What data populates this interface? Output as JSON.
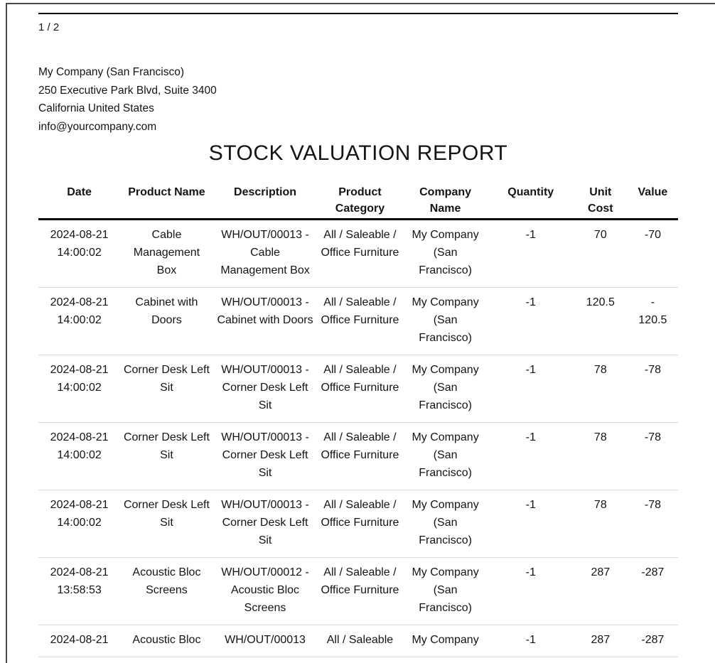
{
  "viewer": {
    "page_indicator": "1 / 2"
  },
  "company": {
    "name": "My Company (San Francisco)",
    "address_line1": "250 Executive Park Blvd, Suite 3400",
    "address_line2": "California United States",
    "email": "info@yourcompany.com"
  },
  "report": {
    "title": "STOCK VALUATION REPORT"
  },
  "table": {
    "headers": [
      "Date",
      "Product Name",
      "Description",
      "Product Category",
      "Company Name",
      "Quantity",
      "Unit Cost",
      "Value"
    ],
    "row_keys": [
      "date",
      "product_name",
      "description",
      "product_category",
      "company_name",
      "quantity",
      "unit_cost",
      "value"
    ],
    "rows": [
      {
        "date": "2024-08-21 14:00:02",
        "product_name": "Cable Management Box",
        "description": "WH/OUT/00013 - Cable Management Box",
        "product_category": "All / Saleable / Office Furniture",
        "company_name": "My Company (San Francisco)",
        "quantity": "-1",
        "unit_cost": "70",
        "value": "-70"
      },
      {
        "date": "2024-08-21 14:00:02",
        "product_name": "Cabinet with Doors",
        "description": "WH/OUT/00013 - Cabinet with Doors",
        "product_category": "All / Saleable / Office Furniture",
        "company_name": "My Company (San Francisco)",
        "quantity": "-1",
        "unit_cost": "120.5",
        "value": "-\n120.5"
      },
      {
        "date": "2024-08-21 14:00:02",
        "product_name": "Corner Desk Left Sit",
        "description": "WH/OUT/00013 - Corner Desk Left Sit",
        "product_category": "All / Saleable / Office Furniture",
        "company_name": "My Company (San Francisco)",
        "quantity": "-1",
        "unit_cost": "78",
        "value": "-78"
      },
      {
        "date": "2024-08-21 14:00:02",
        "product_name": "Corner Desk Left Sit",
        "description": "WH/OUT/00013 - Corner Desk Left Sit",
        "product_category": "All / Saleable / Office Furniture",
        "company_name": "My Company (San Francisco)",
        "quantity": "-1",
        "unit_cost": "78",
        "value": "-78"
      },
      {
        "date": "2024-08-21 14:00:02",
        "product_name": "Corner Desk Left Sit",
        "description": "WH/OUT/00013 - Corner Desk Left Sit",
        "product_category": "All / Saleable / Office Furniture",
        "company_name": "My Company (San Francisco)",
        "quantity": "-1",
        "unit_cost": "78",
        "value": "-78"
      },
      {
        "date": "2024-08-21 13:58:53",
        "product_name": "Acoustic Bloc Screens",
        "description": "WH/OUT/00012 - Acoustic Bloc Screens",
        "product_category": "All / Saleable / Office Furniture",
        "company_name": "My Company (San Francisco)",
        "quantity": "-1",
        "unit_cost": "287",
        "value": "-287"
      },
      {
        "date": "2024-08-21",
        "product_name": "Acoustic Bloc",
        "description": "WH/OUT/00013",
        "product_category": "All / Saleable",
        "company_name": "My Company",
        "quantity": "-1",
        "unit_cost": "287",
        "value": "-287"
      }
    ]
  }
}
